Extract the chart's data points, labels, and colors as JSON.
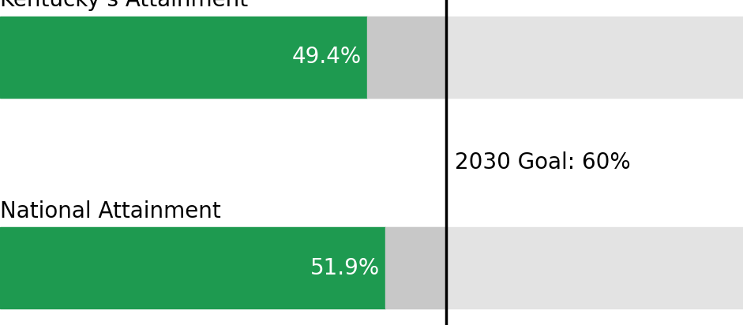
{
  "ky_value": 49.4,
  "national_value": 51.9,
  "goal_value": 60.0,
  "bar_max": 100.0,
  "green_color": "#1e9a50",
  "gray_color": "#c8c8c8",
  "light_gray_color": "#e3e3e3",
  "ky_label": "Kentucky’s Attainment",
  "national_label": "National Attainment",
  "goal_label": "2030 Goal: 60%",
  "ky_pct_label": "49.4%",
  "national_pct_label": "51.9%",
  "label_fontsize": 20,
  "pct_fontsize": 20,
  "goal_fontsize": 20,
  "figsize": [
    9.41,
    4.12
  ],
  "dpi": 100
}
